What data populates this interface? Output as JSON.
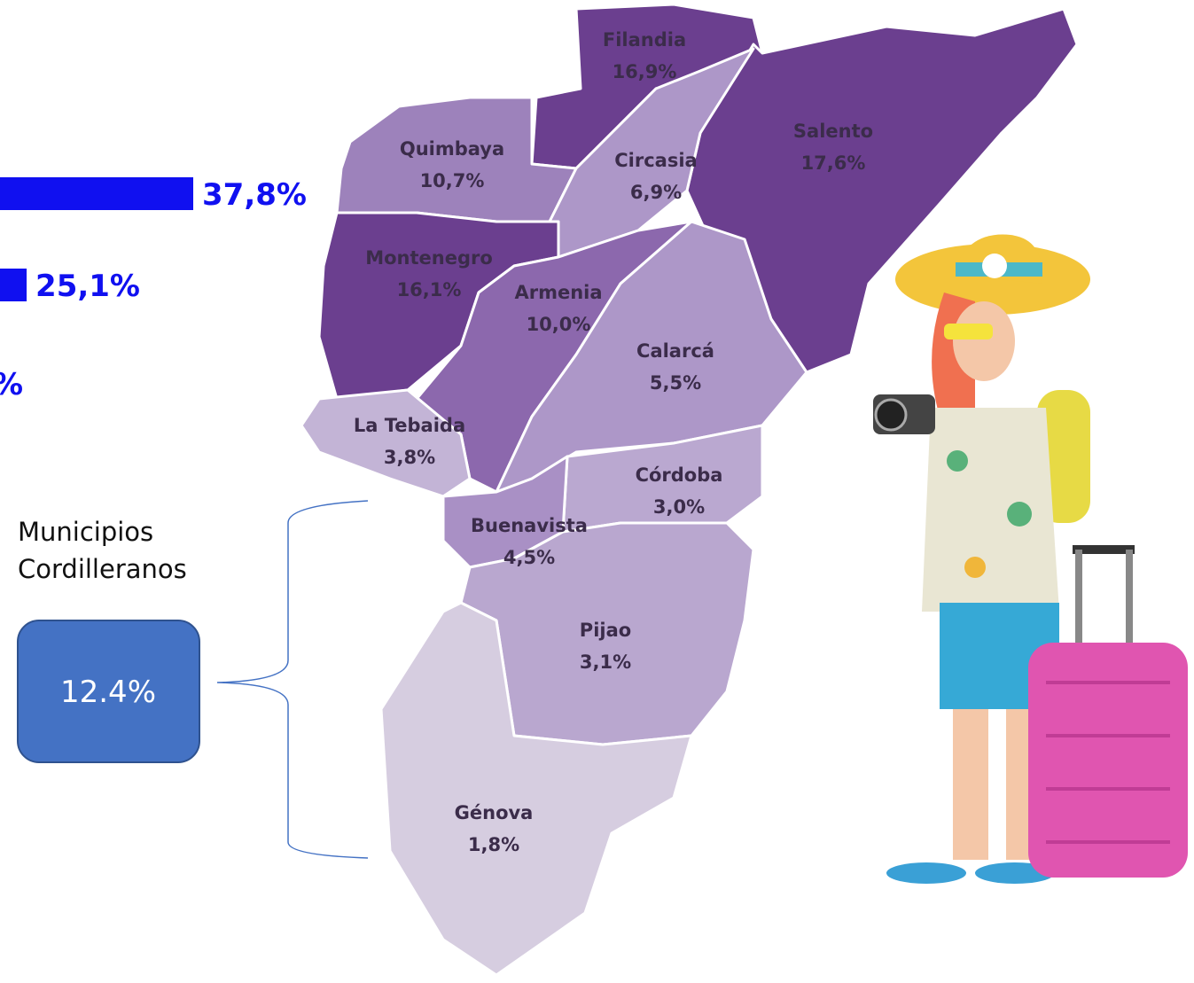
{
  "bars": [
    {
      "value": 37.8,
      "label": "37,8%"
    },
    {
      "value": 25.1,
      "label": "25,1%"
    }
  ],
  "partial_label": "%",
  "municipalities": [
    {
      "name": "Filandia",
      "share": "16,9%"
    },
    {
      "name": "Salento",
      "share": "17,6%"
    },
    {
      "name": "Quimbaya",
      "share": "10,7%"
    },
    {
      "name": "Circasia",
      "share": "6,9%"
    },
    {
      "name": "Montenegro",
      "share": "16,1%"
    },
    {
      "name": "Armenia",
      "share": "10,0%"
    },
    {
      "name": "Calarcá",
      "share": "5,5%"
    },
    {
      "name": "La Tebaida",
      "share": "3,8%"
    },
    {
      "name": "Córdoba",
      "share": "3,0%"
    },
    {
      "name": "Buenavista",
      "share": "4,5%"
    },
    {
      "name": "Pijao",
      "share": "3,1%"
    },
    {
      "name": "Génova",
      "share": "1,8%"
    }
  ],
  "group": {
    "title_lines": [
      "Municipios",
      "Cordilleranos"
    ],
    "share": "12.4%"
  }
}
